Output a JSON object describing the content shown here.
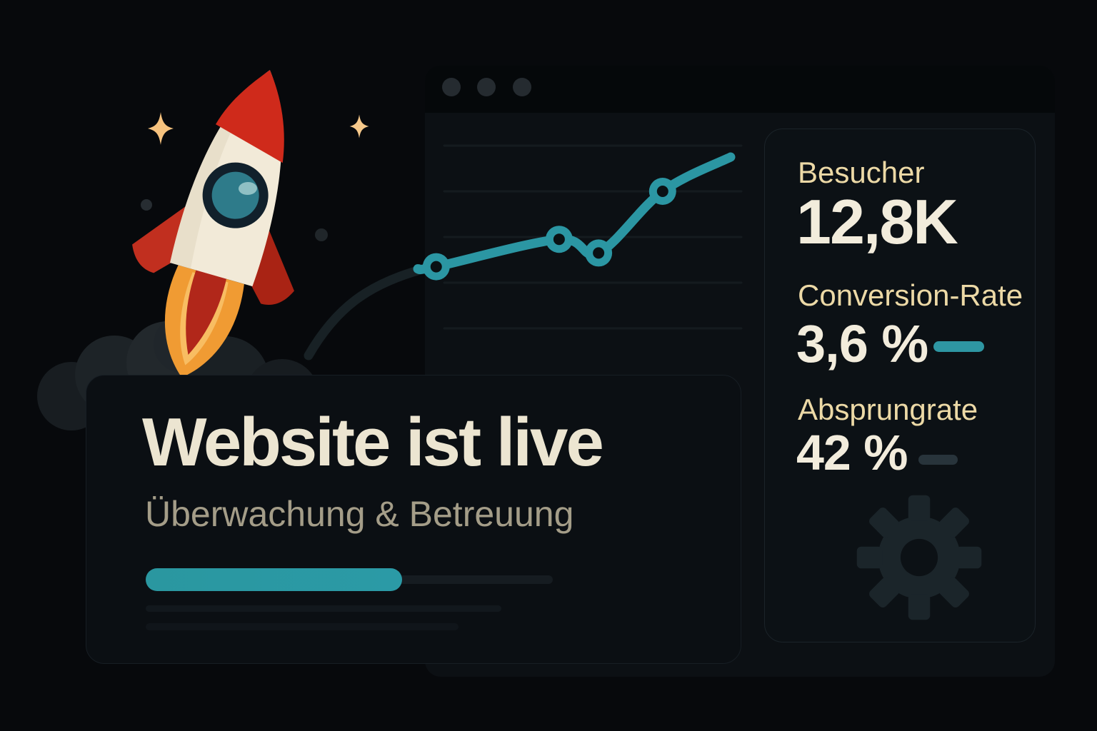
{
  "window": {
    "type": "browser-mock",
    "control_dot_count": 3
  },
  "chart_data": {
    "type": "line",
    "title": "",
    "xlabel": "",
    "ylabel": "",
    "x_rel": [
      0.03,
      0.435,
      0.565,
      0.776,
      1.0
    ],
    "values": [
      47,
      59,
      53,
      80,
      95
    ],
    "has_marker": [
      true,
      true,
      true,
      true,
      false
    ],
    "ylim": [
      0,
      100
    ],
    "gridlines": [
      20,
      40,
      60,
      80,
      100
    ],
    "grid": "on",
    "legend": "none",
    "axis_tick_labels": "none shown",
    "line_color": "#2b96a3",
    "marker_style": "teal ring with dark hole"
  },
  "stats_panel": {
    "metrics": [
      {
        "label": "Besucher",
        "value": "12,8K"
      },
      {
        "label": "Conversion-Rate",
        "value": "3,6 %"
      },
      {
        "label": "Absprungrate",
        "value": "42 %"
      }
    ]
  },
  "launch_card": {
    "title": "Website ist live",
    "subtitle": "Überwachung & Betreuung",
    "progress_percent": 63
  },
  "icons": {
    "settings": "gear-icon",
    "rocket": "rocket-illustration",
    "sparkle": "sparkle-star-icon",
    "window_controls": "window-control-dots"
  },
  "colors": {
    "accent_teal": "#2b96a3",
    "teal_dash": "#2e96a2",
    "slate_dash": "#28343b",
    "label_gold": "#ecd9a6",
    "value_cream": "#f2ecdc",
    "title_cream": "#ece5d1",
    "subtitle_gray": "#a49d88",
    "star_orange": "#f6c27e",
    "gear_slate": "#1b252a"
  }
}
